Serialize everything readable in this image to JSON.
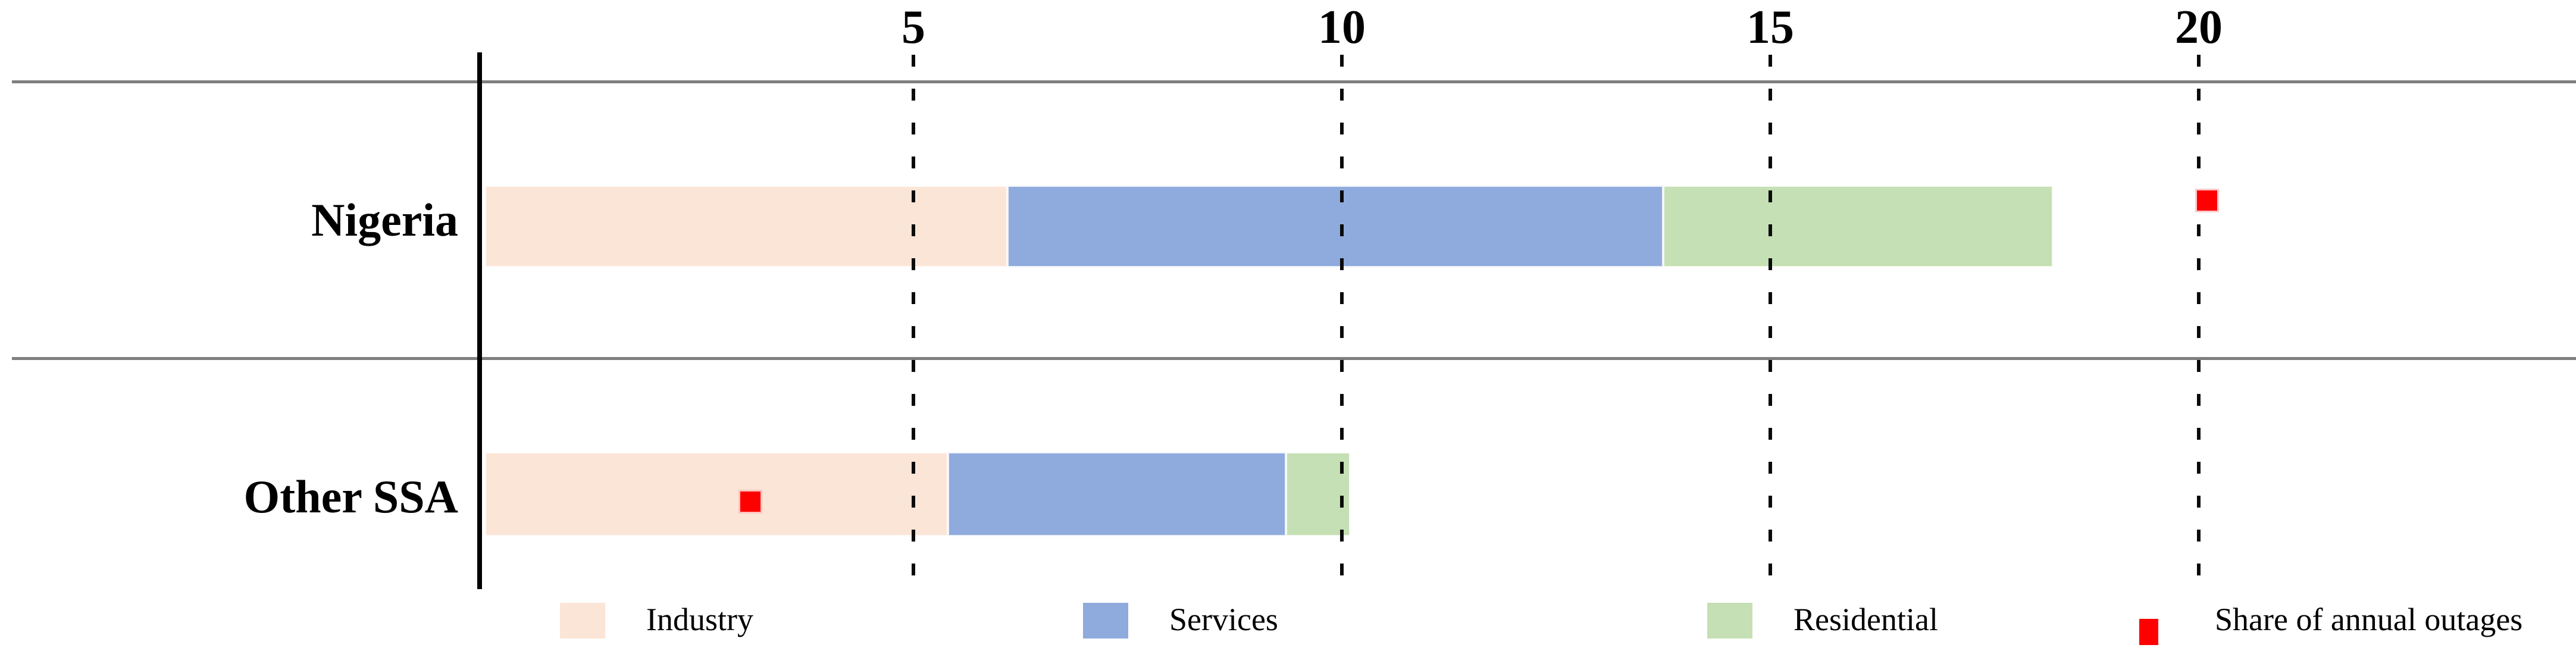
{
  "chart_data": {
    "type": "bar",
    "orientation": "horizontal-stacked",
    "title": "",
    "categories": [
      "Nigeria",
      "Other SSA"
    ],
    "series": [
      {
        "name": "Industry",
        "color": "#fbe5d6",
        "values": [
          6.1,
          5.4
        ]
      },
      {
        "name": "Services",
        "color": "#8faadc",
        "values": [
          7.65,
          3.95
        ]
      },
      {
        "name": "Residential",
        "color": "#c5e0b4",
        "values": [
          4.55,
          0.75
        ]
      }
    ],
    "marker_series": {
      "name": "Share of annual outages",
      "color": "#ff0000",
      "marker": "square",
      "values": [
        20.1,
        3.1
      ]
    },
    "x_ticks": [
      5,
      10,
      15,
      20
    ],
    "xlim": [
      0,
      24.4
    ],
    "x_gridline_style": "dashed",
    "tick_label_position": "top",
    "legend_position": "bottom",
    "axis_color": "#000000",
    "row_separator_color": "#7f7f7f"
  }
}
